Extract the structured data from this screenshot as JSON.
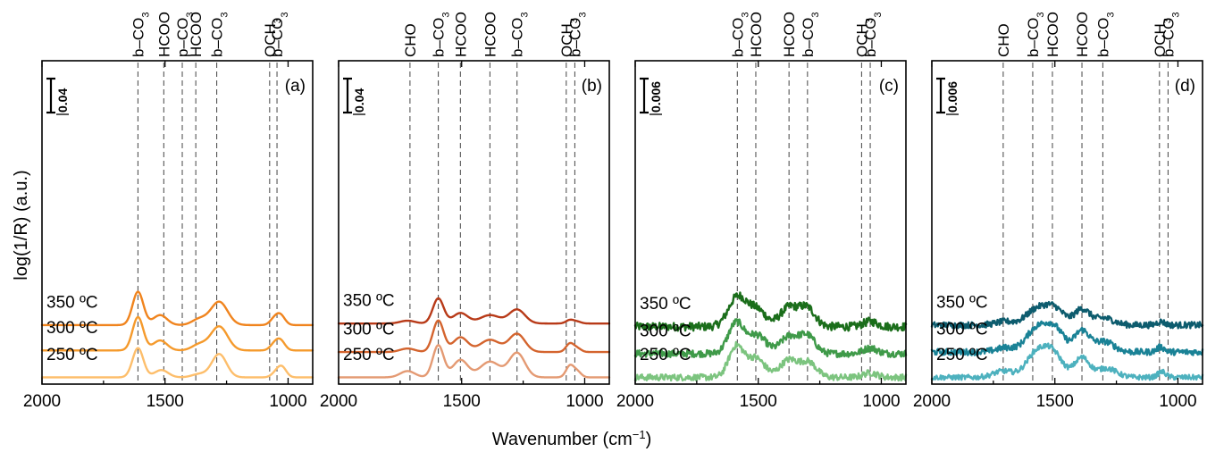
{
  "xlabel": "Wavenumber (cm",
  "xlabel_sup": "−1",
  "xlabel_end": ")",
  "ylabel": "log(1/R) (a.u.)",
  "chart_data": [
    {
      "type": "line",
      "panel_label": "(a)",
      "xlim": [
        2000,
        900
      ],
      "xticks": [
        2000,
        1500,
        1000
      ],
      "scale_bar": "0.04",
      "band_markers": [
        {
          "label": "b–CO3",
          "x": 1610
        },
        {
          "label": "HCOO",
          "x": 1505
        },
        {
          "label": "p–CO3",
          "x": 1430
        },
        {
          "label": "HCOO",
          "x": 1375
        },
        {
          "label": "b–CO3",
          "x": 1290
        },
        {
          "label": "OCH3",
          "x": 1075
        },
        {
          "label": "b–CO3",
          "x": 1045
        }
      ],
      "series": [
        {
          "name": "350 ºC",
          "color": "#F0841E",
          "noise": 0,
          "baseline": 0.175,
          "amp": 0.105,
          "peaks": [
            [
              1610,
              22,
              1.0
            ],
            [
              1520,
              28,
              0.3
            ],
            [
              1360,
              30,
              0.18
            ],
            [
              1280,
              34,
              0.7
            ],
            [
              1055,
              18,
              0.18
            ],
            [
              1030,
              18,
              0.27
            ]
          ]
        },
        {
          "name": "300 ºC",
          "color": "#F59A2C",
          "noise": 0,
          "baseline": 0.095,
          "amp": 0.105,
          "peaks": [
            [
              1610,
              22,
              1.0
            ],
            [
              1520,
              28,
              0.3
            ],
            [
              1360,
              30,
              0.18
            ],
            [
              1280,
              34,
              0.72
            ],
            [
              1055,
              18,
              0.18
            ],
            [
              1030,
              18,
              0.27
            ]
          ]
        },
        {
          "name": "250 ºC",
          "color": "#FDBE6B",
          "noise": 0,
          "baseline": 0.01,
          "amp": 0.105,
          "peaks": [
            [
              1610,
              22,
              0.88
            ],
            [
              1515,
              28,
              0.22
            ],
            [
              1360,
              30,
              0.1
            ],
            [
              1280,
              30,
              0.7
            ],
            [
              1050,
              18,
              0.12
            ],
            [
              1025,
              18,
              0.3
            ]
          ]
        }
      ],
      "series_labels": [
        "350 ºC",
        "300 ºC",
        "250 ºC"
      ]
    },
    {
      "type": "line",
      "panel_label": "(b)",
      "xlim": [
        2000,
        900
      ],
      "xticks": [
        2000,
        1500,
        1000
      ],
      "scale_bar": "0.04",
      "band_markers": [
        {
          "label": "CHO",
          "x": 1710
        },
        {
          "label": "b–CO3",
          "x": 1595
        },
        {
          "label": "HCOO",
          "x": 1505
        },
        {
          "label": "HCOO",
          "x": 1385
        },
        {
          "label": "b–CO3",
          "x": 1275
        },
        {
          "label": "OCH3",
          "x": 1075
        },
        {
          "label": "b–CO3",
          "x": 1040
        }
      ],
      "series": [
        {
          "name": "350 ºC",
          "color": "#B83A18",
          "noise": 0,
          "baseline": 0.18,
          "amp": 0.11,
          "peaks": [
            [
              1720,
              30,
              0.08
            ],
            [
              1595,
              22,
              0.72
            ],
            [
              1505,
              30,
              0.3
            ],
            [
              1385,
              40,
              0.24
            ],
            [
              1275,
              32,
              0.4
            ],
            [
              1060,
              16,
              0.1
            ],
            [
              1030,
              16,
              0.05
            ]
          ]
        },
        {
          "name": "300 ºC",
          "color": "#D4642E",
          "noise": 0,
          "baseline": 0.09,
          "amp": 0.11,
          "peaks": [
            [
              1720,
              30,
              0.1
            ],
            [
              1595,
              22,
              0.9
            ],
            [
              1505,
              30,
              0.42
            ],
            [
              1385,
              40,
              0.35
            ],
            [
              1275,
              32,
              0.52
            ],
            [
              1060,
              16,
              0.24
            ],
            [
              1030,
              16,
              0.1
            ]
          ]
        },
        {
          "name": "250 ºC",
          "color": "#E49A73",
          "noise": 0,
          "baseline": 0.01,
          "amp": 0.11,
          "peaks": [
            [
              1720,
              30,
              0.18
            ],
            [
              1595,
              22,
              0.92
            ],
            [
              1505,
              30,
              0.5
            ],
            [
              1385,
              40,
              0.45
            ],
            [
              1275,
              32,
              0.7
            ],
            [
              1060,
              16,
              0.33
            ],
            [
              1030,
              16,
              0.16
            ]
          ]
        }
      ],
      "series_labels": [
        "350 ºC",
        "300 ºC",
        "250 ºC"
      ]
    },
    {
      "type": "line",
      "panel_label": "(c)",
      "xlim": [
        2000,
        900
      ],
      "xticks": [
        2000,
        1500,
        1000
      ],
      "scale_bar": "0.006",
      "band_markers": [
        {
          "label": "b–CO3",
          "x": 1585
        },
        {
          "label": "HCOO",
          "x": 1510
        },
        {
          "label": "HCOO",
          "x": 1375
        },
        {
          "label": "b–CO3",
          "x": 1300
        },
        {
          "label": "OCH3",
          "x": 1080
        },
        {
          "label": "b–CO3",
          "x": 1045
        }
      ],
      "series": [
        {
          "name": "350 ºC",
          "color": "#1B6E1B",
          "noise": 0.013,
          "baseline": 0.17,
          "amp": 0.11,
          "peaks": [
            [
              1585,
              36,
              0.85
            ],
            [
              1505,
              36,
              0.48
            ],
            [
              1375,
              36,
              0.55
            ],
            [
              1300,
              32,
              0.52
            ],
            [
              1045,
              28,
              0.15
            ]
          ]
        },
        {
          "name": "300 ºC",
          "color": "#3F9A49",
          "noise": 0.011,
          "baseline": 0.085,
          "amp": 0.11,
          "peaks": [
            [
              1590,
              32,
              0.88
            ],
            [
              1505,
              36,
              0.52
            ],
            [
              1375,
              36,
              0.48
            ],
            [
              1300,
              32,
              0.5
            ],
            [
              1045,
              28,
              0.16
            ]
          ]
        },
        {
          "name": "250 ºC",
          "color": "#7CC47F",
          "noise": 0.01,
          "baseline": 0.01,
          "amp": 0.11,
          "peaks": [
            [
              1590,
              30,
              0.88
            ],
            [
              1510,
              36,
              0.55
            ],
            [
              1375,
              36,
              0.5
            ],
            [
              1295,
              32,
              0.42
            ],
            [
              1045,
              28,
              0.13
            ]
          ]
        }
      ],
      "series_labels": [
        "350 ºC",
        "300 ºC",
        "250 ºC"
      ]
    },
    {
      "type": "line",
      "panel_label": "(d)",
      "xlim": [
        2000,
        900
      ],
      "xticks": [
        2000,
        1500,
        1000
      ],
      "scale_bar": "0.006",
      "band_markers": [
        {
          "label": "CHO",
          "x": 1710
        },
        {
          "label": "b–CO3",
          "x": 1590
        },
        {
          "label": "HCOO",
          "x": 1510
        },
        {
          "label": "HCOO",
          "x": 1390
        },
        {
          "label": "b–CO3",
          "x": 1305
        },
        {
          "label": "OCH3",
          "x": 1075
        },
        {
          "label": "b–CO3",
          "x": 1040
        }
      ],
      "series": [
        {
          "name": "350 ºC",
          "color": "#0D5C6E",
          "noise": 0.01,
          "baseline": 0.175,
          "amp": 0.11,
          "peaks": [
            [
              1700,
              40,
              0.1
            ],
            [
              1580,
              40,
              0.4
            ],
            [
              1505,
              40,
              0.5
            ],
            [
              1390,
              30,
              0.45
            ],
            [
              1300,
              40,
              0.2
            ],
            [
              1070,
              16,
              0.1
            ]
          ]
        },
        {
          "name": "300 ºC",
          "color": "#1A8296",
          "noise": 0.01,
          "baseline": 0.09,
          "amp": 0.11,
          "peaks": [
            [
              1700,
              40,
              0.12
            ],
            [
              1580,
              40,
              0.6
            ],
            [
              1505,
              40,
              0.7
            ],
            [
              1390,
              30,
              0.6
            ],
            [
              1300,
              40,
              0.3
            ],
            [
              1070,
              16,
              0.14
            ]
          ]
        },
        {
          "name": "250 ºC",
          "color": "#4DB1BE",
          "noise": 0.008,
          "baseline": 0.01,
          "amp": 0.11,
          "peaks": [
            [
              1710,
              40,
              0.18
            ],
            [
              1580,
              40,
              0.62
            ],
            [
              1510,
              40,
              0.7
            ],
            [
              1390,
              30,
              0.56
            ],
            [
              1290,
              40,
              0.26
            ],
            [
              1065,
              16,
              0.16
            ]
          ]
        }
      ],
      "series_labels": [
        "350 ºC",
        "300 ºC",
        "250 ºC"
      ]
    }
  ]
}
